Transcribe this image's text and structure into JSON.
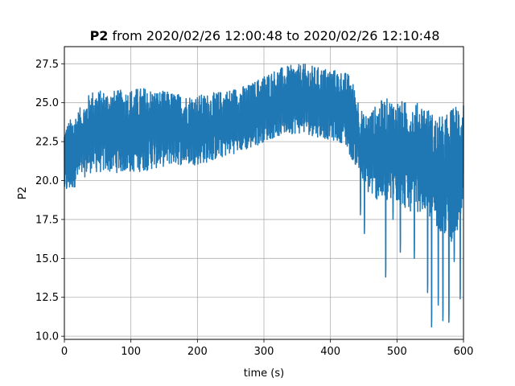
{
  "chart_data": {
    "type": "line",
    "title": {
      "bold": "P2",
      "rest": "from 2020/02/26 12:00:48 to 2020/02/26 12:10:48"
    },
    "xlabel": "time (s)",
    "ylabel": "P2",
    "xlim": [
      0,
      600
    ],
    "ylim": [
      9.8,
      28.6
    ],
    "xticks": [
      0,
      100,
      200,
      300,
      400,
      500,
      600
    ],
    "xtick_labels": [
      "0",
      "100",
      "200",
      "300",
      "400",
      "500",
      "600"
    ],
    "yticks": [
      10.0,
      12.5,
      15.0,
      17.5,
      20.0,
      22.5,
      25.0,
      27.5
    ],
    "ytick_labels": [
      "10.0",
      "12.5",
      "15.0",
      "17.5",
      "20.0",
      "22.5",
      "25.0",
      "27.5"
    ],
    "grid": true,
    "line_color": "#1f77b4",
    "series": [
      {
        "name": "",
        "envelope_x": [
          0,
          10,
          20,
          30,
          40,
          60,
          80,
          100,
          120,
          140,
          160,
          180,
          200,
          220,
          240,
          260,
          280,
          300,
          320,
          340,
          360,
          380,
          400,
          420,
          430,
          440,
          450,
          460,
          480,
          500,
          520,
          540,
          560,
          580,
          600
        ],
        "envelope_max": [
          23.5,
          24.0,
          24.5,
          25.0,
          25.8,
          25.8,
          25.8,
          25.9,
          26.0,
          25.8,
          25.7,
          25.5,
          25.5,
          25.6,
          25.8,
          26.0,
          26.2,
          26.8,
          27.2,
          27.4,
          27.5,
          27.3,
          27.2,
          27.0,
          26.8,
          25.5,
          24.2,
          24.5,
          25.3,
          25.2,
          25.0,
          25.0,
          24.0,
          24.5,
          25.5
        ],
        "envelope_min": [
          19.0,
          19.3,
          19.8,
          20.2,
          20.5,
          20.5,
          20.5,
          20.5,
          20.6,
          20.8,
          21.0,
          21.0,
          21.0,
          21.2,
          21.5,
          21.8,
          22.0,
          22.5,
          22.8,
          23.0,
          23.0,
          22.8,
          22.6,
          22.4,
          21.5,
          20.8,
          19.5,
          19.0,
          18.5,
          18.5,
          18.0,
          18.0,
          17.0,
          16.0,
          17.0
        ],
        "spikes": [
          {
            "x": 445,
            "y": 17.8
          },
          {
            "x": 451,
            "y": 16.6
          },
          {
            "x": 483,
            "y": 13.8
          },
          {
            "x": 494,
            "y": 17.5
          },
          {
            "x": 505,
            "y": 15.4
          },
          {
            "x": 526,
            "y": 15.0
          },
          {
            "x": 546,
            "y": 12.8
          },
          {
            "x": 552,
            "y": 10.6
          },
          {
            "x": 562,
            "y": 12.0
          },
          {
            "x": 569,
            "y": 11.0
          },
          {
            "x": 578,
            "y": 10.9
          },
          {
            "x": 586,
            "y": 14.8
          },
          {
            "x": 595,
            "y": 12.4
          }
        ]
      }
    ]
  }
}
